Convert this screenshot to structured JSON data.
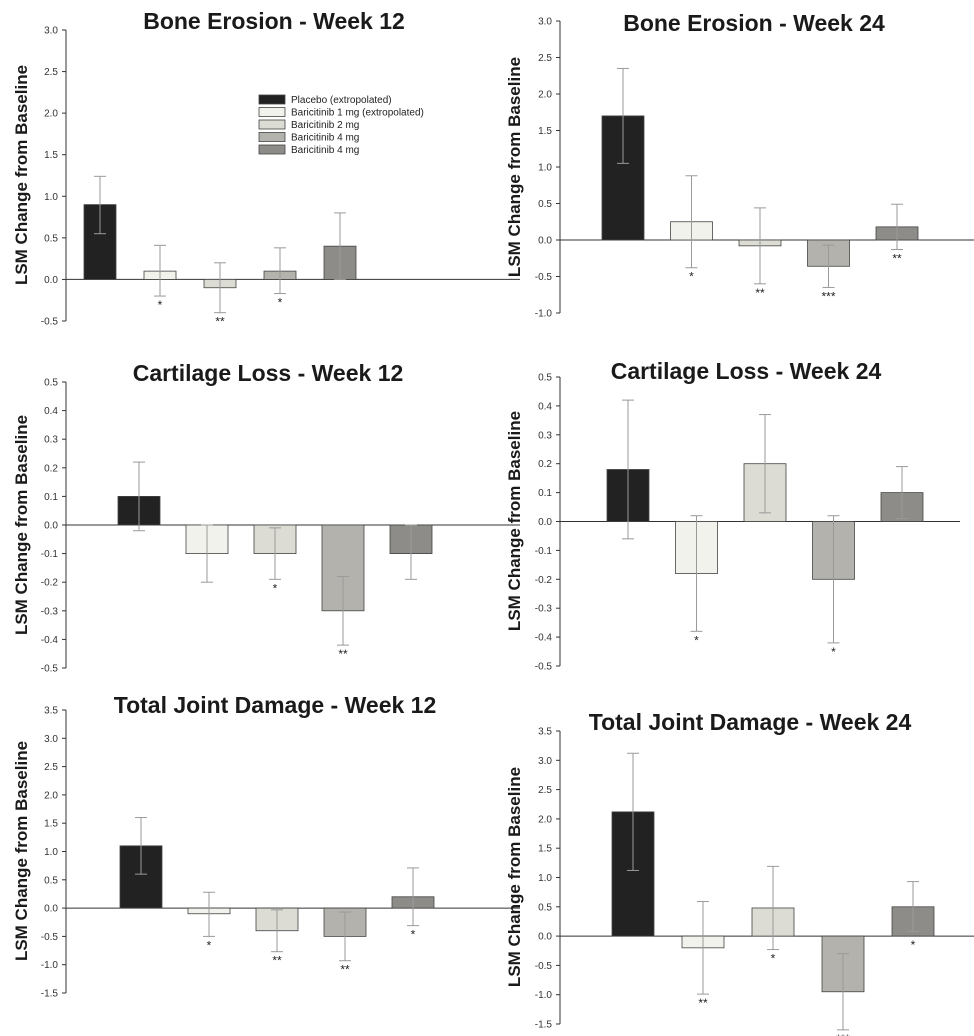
{
  "figure": {
    "legend": [
      {
        "label": "Placebo (extropolated)",
        "color": "#222222"
      },
      {
        "label": "Baricitinib 1 mg (extropolated)",
        "color": "#f2f2ec"
      },
      {
        "label": "Baricitinib 2 mg",
        "color": "#dcdcd4"
      },
      {
        "label": "Baricitinib 4 mg",
        "color": "#b4b2ac"
      },
      {
        "label": "Baricitinib 4 mg",
        "color": "#8e8c88"
      }
    ]
  },
  "chart_data": [
    {
      "type": "bar",
      "title": "Bone Erosion - Week 12",
      "ylabel": "LSM Change from Baseline",
      "ylim": [
        -0.5,
        3.0
      ],
      "yticks": [
        "-0.5",
        "0.0",
        "0.5",
        "1.0",
        "1.5",
        "2.0",
        "2.5",
        "3.0"
      ],
      "series": [
        {
          "name": "Placebo (extropolated)",
          "value": 0.9,
          "err_low": 0.55,
          "err_high": 1.24,
          "sig": ""
        },
        {
          "name": "Baricitinib 1 mg (extropolated)",
          "value": 0.1,
          "err_low": -0.2,
          "err_high": 0.41,
          "sig": "*"
        },
        {
          "name": "Baricitinib 2 mg",
          "value": -0.1,
          "err_low": -0.4,
          "err_high": 0.2,
          "sig": "**"
        },
        {
          "name": "Baricitinib 4 mg",
          "value": 0.1,
          "err_low": -0.17,
          "err_high": 0.38,
          "sig": "*"
        },
        {
          "name": "Baricitinib 4 mg",
          "value": 0.4,
          "err_low": 0.0,
          "err_high": 0.8,
          "sig": ""
        }
      ]
    },
    {
      "type": "bar",
      "title": "Bone Erosion - Week 24",
      "ylabel": "LSM Change from Baseline",
      "ylim": [
        -1.0,
        3.0
      ],
      "yticks": [
        "-1.0",
        "-0.5",
        "0.0",
        "0.5",
        "1.0",
        "1.5",
        "2.0",
        "2.5",
        "3.0"
      ],
      "series": [
        {
          "name": "Placebo (extropolated)",
          "value": 1.7,
          "err_low": 1.05,
          "err_high": 2.35,
          "sig": ""
        },
        {
          "name": "Baricitinib 1 mg (extropolated)",
          "value": 0.25,
          "err_low": -0.38,
          "err_high": 0.88,
          "sig": "*"
        },
        {
          "name": "Baricitinib 2 mg",
          "value": -0.08,
          "err_low": -0.6,
          "err_high": 0.44,
          "sig": "**"
        },
        {
          "name": "Baricitinib 4 mg",
          "value": -0.36,
          "err_low": -0.65,
          "err_high": -0.07,
          "sig": "***"
        },
        {
          "name": "Baricitinib 4 mg",
          "value": 0.18,
          "err_low": -0.13,
          "err_high": 0.49,
          "sig": "**"
        }
      ]
    },
    {
      "type": "bar",
      "title": "Cartilage Loss - Week 12",
      "ylabel": "LSM Change from Baseline",
      "ylim": [
        -0.5,
        0.5
      ],
      "yticks": [
        "-0.5",
        "-0.4",
        "-0.3",
        "-0.2",
        "-0.1",
        "0.0",
        "0.1",
        "0.2",
        "0.3",
        "0.4",
        "0.5"
      ],
      "series": [
        {
          "name": "Placebo (extropolated)",
          "value": 0.1,
          "err_low": -0.02,
          "err_high": 0.22,
          "sig": ""
        },
        {
          "name": "Baricitinib 1 mg (extropolated)",
          "value": -0.1,
          "err_low": -0.2,
          "err_high": 0.0,
          "sig": ""
        },
        {
          "name": "Baricitinib 2 mg",
          "value": -0.1,
          "err_low": -0.19,
          "err_high": -0.01,
          "sig": "*"
        },
        {
          "name": "Baricitinib 4 mg",
          "value": -0.3,
          "err_low": -0.42,
          "err_high": -0.18,
          "sig": "**"
        },
        {
          "name": "Baricitinib 4 mg",
          "value": -0.1,
          "err_low": -0.19,
          "err_high": 0.0,
          "sig": ""
        }
      ]
    },
    {
      "type": "bar",
      "title": "Cartilage Loss - Week 24",
      "ylabel": "LSM Change from Baseline",
      "ylim": [
        -0.5,
        0.5
      ],
      "yticks": [
        "-0.5",
        "-0.4",
        "-0.3",
        "-0.2",
        "-0.1",
        "0.0",
        "0.1",
        "0.2",
        "0.3",
        "0.4",
        "0.5"
      ],
      "series": [
        {
          "name": "Placebo (extropolated)",
          "value": 0.18,
          "err_low": -0.06,
          "err_high": 0.42,
          "sig": ""
        },
        {
          "name": "Baricitinib 1 mg (extropolated)",
          "value": -0.18,
          "err_low": -0.38,
          "err_high": 0.02,
          "sig": "*"
        },
        {
          "name": "Baricitinib 2 mg",
          "value": 0.2,
          "err_low": 0.03,
          "err_high": 0.37,
          "sig": ""
        },
        {
          "name": "Baricitinib 4 mg",
          "value": -0.2,
          "err_low": -0.42,
          "err_high": 0.02,
          "sig": "*"
        },
        {
          "name": "Baricitinib 4 mg",
          "value": 0.1,
          "err_low": 0.01,
          "err_high": 0.19,
          "sig": ""
        }
      ]
    },
    {
      "type": "bar",
      "title": "Total Joint Damage - Week 12",
      "ylabel": "LSM Change from Baseline",
      "ylim": [
        -1.5,
        3.5
      ],
      "yticks": [
        "-1.5",
        "-1.0",
        "-0.5",
        "0.0",
        "0.5",
        "1.0",
        "1.5",
        "2.0",
        "2.5",
        "3.0",
        "3.5"
      ],
      "series": [
        {
          "name": "Placebo (extropolated)",
          "value": 1.1,
          "err_low": 0.6,
          "err_high": 1.6,
          "sig": ""
        },
        {
          "name": "Baricitinib 1 mg (extropolated)",
          "value": -0.1,
          "err_low": -0.5,
          "err_high": 0.28,
          "sig": "*"
        },
        {
          "name": "Baricitinib 2 mg",
          "value": -0.4,
          "err_low": -0.77,
          "err_high": -0.03,
          "sig": "**"
        },
        {
          "name": "Baricitinib 4 mg",
          "value": -0.5,
          "err_low": -0.93,
          "err_high": -0.07,
          "sig": "**"
        },
        {
          "name": "Baricitinib 4 mg",
          "value": 0.2,
          "err_low": -0.31,
          "err_high": 0.71,
          "sig": "*"
        }
      ]
    },
    {
      "type": "bar",
      "title": "Total Joint Damage - Week 24",
      "ylabel": "LSM Change from Baseline",
      "ylim": [
        -1.5,
        3.5
      ],
      "yticks": [
        "-1.5",
        "-1.0",
        "-0.5",
        "0.0",
        "0.5",
        "1.0",
        "1.5",
        "2.0",
        "2.5",
        "3.0",
        "3.5"
      ],
      "series": [
        {
          "name": "Placebo (extropolated)",
          "value": 2.12,
          "err_low": 1.12,
          "err_high": 3.12,
          "sig": ""
        },
        {
          "name": "Baricitinib 1 mg (extropolated)",
          "value": -0.2,
          "err_low": -0.99,
          "err_high": 0.59,
          "sig": "**"
        },
        {
          "name": "Baricitinib 2 mg",
          "value": 0.48,
          "err_low": -0.23,
          "err_high": 1.19,
          "sig": "*"
        },
        {
          "name": "Baricitinib 4 mg",
          "value": -0.95,
          "err_low": -1.6,
          "err_high": -0.3,
          "sig": "***"
        },
        {
          "name": "Baricitinib 4 mg",
          "value": 0.5,
          "err_low": 0.08,
          "err_high": 0.93,
          "sig": "*"
        }
      ]
    }
  ]
}
